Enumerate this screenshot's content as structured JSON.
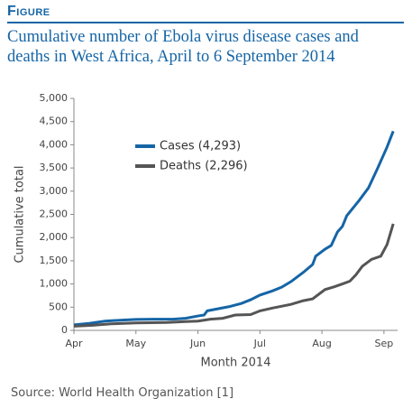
{
  "label": "Figure",
  "source": "Source: World Health Organization [1]",
  "chart_data": {
    "type": "line",
    "title": "Cumulative number of Ebola virus disease cases and deaths in West Africa, April to 6 September 2014",
    "x_label": "Month 2014",
    "y_label": "Cumulative total",
    "xlim": [
      0,
      5.22
    ],
    "xticks": [
      {
        "value": 0,
        "label": "Apr"
      },
      {
        "value": 1,
        "label": "May"
      },
      {
        "value": 2,
        "label": "Jun"
      },
      {
        "value": 3,
        "label": "Jul"
      },
      {
        "value": 4,
        "label": "Aug"
      },
      {
        "value": 5,
        "label": "Sep"
      }
    ],
    "ylim": [
      0,
      5000
    ],
    "yticks": [
      0,
      {
        "value": 500,
        "label": "500"
      },
      {
        "value": 1000,
        "label": "1,000"
      },
      {
        "value": 1500,
        "label": "1,500"
      },
      {
        "value": 2000,
        "label": "2,000"
      },
      {
        "value": 2500,
        "label": "2,500"
      },
      {
        "value": 3000,
        "label": "3,000"
      },
      {
        "value": 3500,
        "label": "3,500"
      },
      {
        "value": 4000,
        "label": "4,000"
      },
      {
        "value": 4500,
        "label": "4,500"
      },
      {
        "value": 5000,
        "label": "5,000"
      }
    ],
    "series": [
      {
        "name": "Cases (4,293)",
        "color": "#1565a6",
        "x": [
          0,
          0.25,
          0.5,
          0.75,
          1,
          1.3,
          1.6,
          1.8,
          2,
          2.1,
          2.15,
          2.3,
          2.5,
          2.7,
          2.85,
          3,
          3.2,
          3.35,
          3.5,
          3.7,
          3.85,
          3.9,
          4.05,
          4.15,
          4.25,
          4.33,
          4.4,
          4.6,
          4.75,
          4.9,
          5.05,
          5.15
        ],
        "values": [
          120,
          150,
          200,
          220,
          235,
          240,
          240,
          260,
          310,
          330,
          420,
          460,
          510,
          580,
          660,
          760,
          850,
          930,
          1050,
          1250,
          1420,
          1600,
          1750,
          1830,
          2120,
          2240,
          2470,
          2800,
          3070,
          3500,
          3950,
          4293
        ]
      },
      {
        "name": "Deaths (2,296)",
        "color": "#555555",
        "x": [
          0,
          0.3,
          0.6,
          1,
          1.5,
          1.8,
          2,
          2.2,
          2.4,
          2.6,
          2.85,
          3,
          3.2,
          3.5,
          3.7,
          3.85,
          4.05,
          4.2,
          4.35,
          4.45,
          4.55,
          4.65,
          4.8,
          4.95,
          5.05,
          5.15
        ],
        "values": [
          90,
          110,
          140,
          160,
          170,
          190,
          200,
          240,
          260,
          330,
          340,
          420,
          480,
          560,
          640,
          680,
          880,
          940,
          1010,
          1060,
          1200,
          1380,
          1530,
          1600,
          1850,
          2296
        ]
      }
    ]
  }
}
